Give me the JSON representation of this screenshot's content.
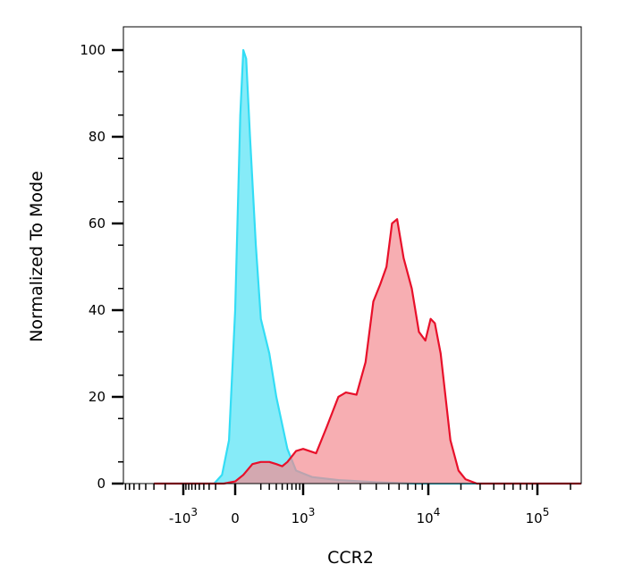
{
  "chart_data": {
    "type": "area",
    "title": "",
    "xlabel": "CCR2",
    "ylabel": "Normalized To Mode",
    "x_scale": "biexponential",
    "xlim": [
      -3000,
      250000
    ],
    "ylim": [
      0,
      105
    ],
    "grid": false,
    "legend": "none",
    "y_ticks": [
      {
        "value": 0,
        "label": "0"
      },
      {
        "value": 20,
        "label": "20"
      },
      {
        "value": 40,
        "label": "40"
      },
      {
        "value": 60,
        "label": "60"
      },
      {
        "value": 80,
        "label": "80"
      },
      {
        "value": 100,
        "label": "100"
      }
    ],
    "x_ticks": [
      {
        "value": -1000,
        "base": "-10",
        "exp": "3"
      },
      {
        "value": 0,
        "base": "0",
        "exp": ""
      },
      {
        "value": 1000,
        "base": "10",
        "exp": "3"
      },
      {
        "value": 10000,
        "base": "10",
        "exp": "4"
      },
      {
        "value": 100000,
        "base": "10",
        "exp": "5"
      }
    ],
    "series": [
      {
        "color": "#33ddf5",
        "fill": "#7feaf8",
        "points": [
          [
            -3000,
            0
          ],
          [
            -220,
            0
          ],
          [
            -120,
            2
          ],
          [
            -50,
            10
          ],
          [
            0,
            40
          ],
          [
            30,
            85
          ],
          [
            50,
            100
          ],
          [
            70,
            98
          ],
          [
            100,
            80
          ],
          [
            150,
            55
          ],
          [
            200,
            38
          ],
          [
            300,
            30
          ],
          [
            400,
            20
          ],
          [
            600,
            8
          ],
          [
            800,
            3
          ],
          [
            1200,
            1.5
          ],
          [
            2000,
            0.8
          ],
          [
            4000,
            0.3
          ],
          [
            8000,
            0
          ],
          [
            250000,
            0
          ]
        ]
      },
      {
        "color": "#e8102a",
        "fill": "#f48c92",
        "points": [
          [
            -3000,
            0
          ],
          [
            -100,
            0
          ],
          [
            0,
            0.5
          ],
          [
            50,
            2
          ],
          [
            120,
            4.5
          ],
          [
            200,
            5
          ],
          [
            300,
            5
          ],
          [
            400,
            4.5
          ],
          [
            500,
            4
          ],
          [
            600,
            5
          ],
          [
            800,
            7.5
          ],
          [
            1000,
            8
          ],
          [
            1300,
            7
          ],
          [
            1600,
            13
          ],
          [
            2000,
            20
          ],
          [
            2300,
            21
          ],
          [
            2800,
            20.5
          ],
          [
            3300,
            28
          ],
          [
            3800,
            42
          ],
          [
            4300,
            46
          ],
          [
            4800,
            50
          ],
          [
            5300,
            60
          ],
          [
            5800,
            61
          ],
          [
            6500,
            52
          ],
          [
            7500,
            45
          ],
          [
            8500,
            35
          ],
          [
            9500,
            33
          ],
          [
            10500,
            38
          ],
          [
            11500,
            37
          ],
          [
            13000,
            30
          ],
          [
            16000,
            10
          ],
          [
            19000,
            3
          ],
          [
            22000,
            1
          ],
          [
            28000,
            0
          ],
          [
            250000,
            0
          ]
        ]
      }
    ]
  }
}
